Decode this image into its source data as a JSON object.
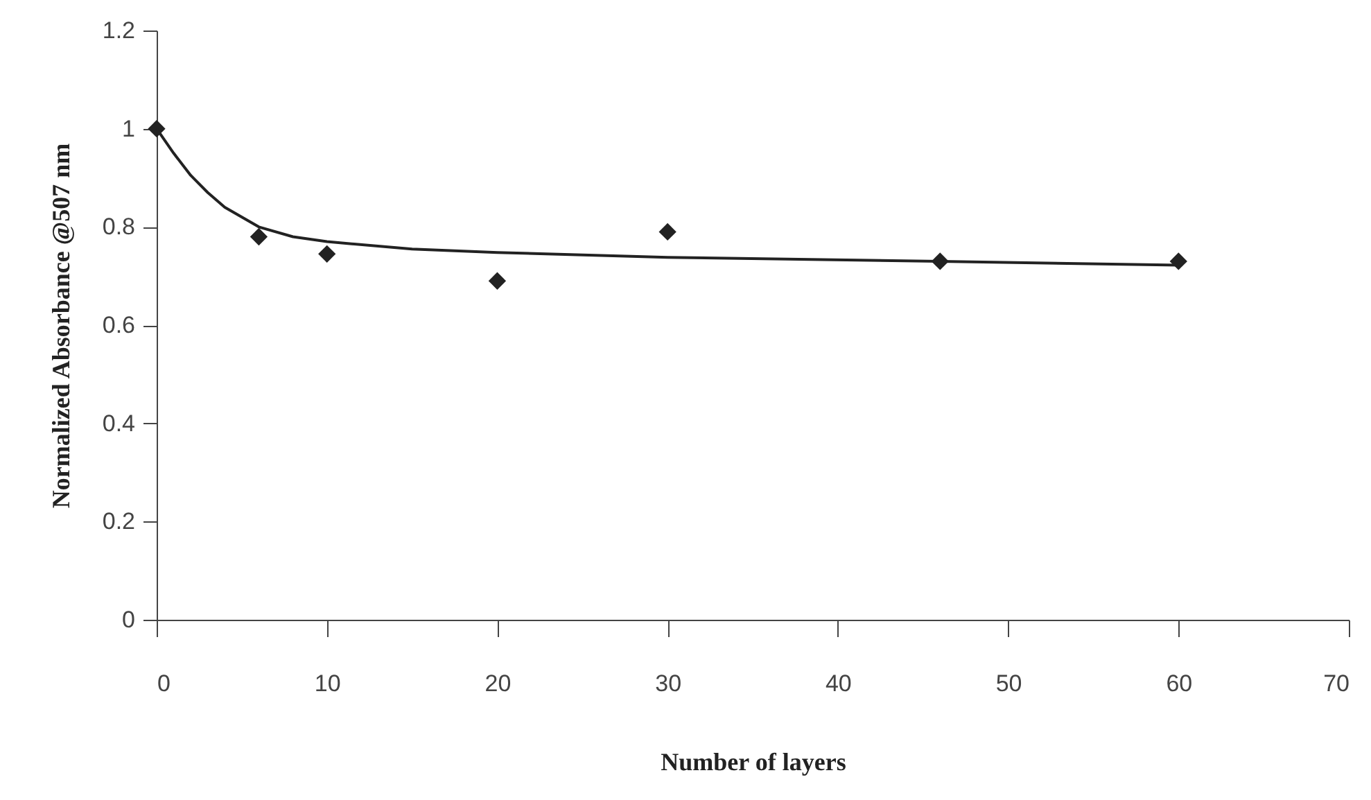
{
  "chart_data": {
    "type": "scatter",
    "xlabel": "Number of layers",
    "ylabel": "Normalized Absorbance @507 nm",
    "xlim": [
      0,
      70
    ],
    "xticks": [
      0,
      10,
      20,
      30,
      40,
      50,
      60,
      70
    ],
    "ylim": [
      0,
      1.2
    ],
    "yticks": [
      0,
      0.2,
      0.4,
      0.6,
      0.8,
      1,
      1.2
    ],
    "grid": false,
    "marker": "diamond",
    "series": [
      {
        "color": "#222222",
        "x": [
          0,
          6,
          10,
          20,
          30,
          46,
          60
        ],
        "values": [
          1.0,
          0.78,
          0.745,
          0.69,
          0.79,
          0.73,
          0.73
        ]
      },
      {
        "type": "line",
        "color": "#222222",
        "line_style": "solid",
        "marker": "none",
        "x": [
          0,
          1,
          2,
          3,
          4,
          6,
          8,
          10,
          15,
          20,
          30,
          46,
          60
        ],
        "values": [
          1.0,
          0.95,
          0.905,
          0.87,
          0.84,
          0.8,
          0.78,
          0.77,
          0.755,
          0.748,
          0.738,
          0.73,
          0.722
        ]
      }
    ]
  }
}
